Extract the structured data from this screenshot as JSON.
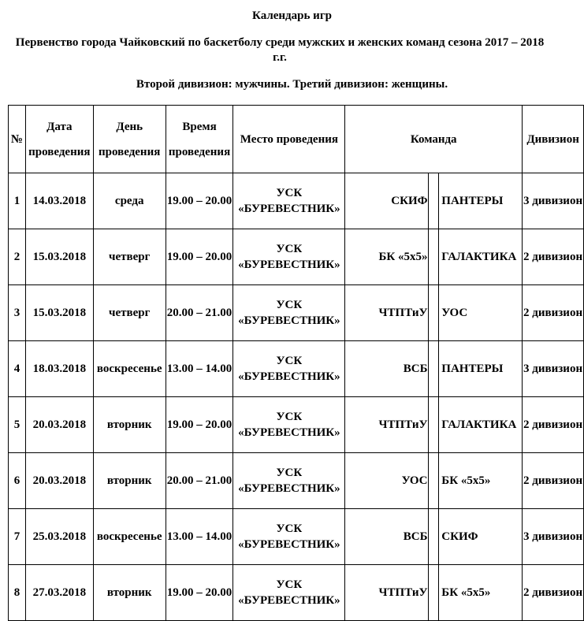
{
  "title": "Календарь игр",
  "subtitle": "Первенство города Чайковский по баскетболу среди мужских и женских команд сезона 2017 – 2018 г.г.",
  "divisions": "Второй дивизион: мужчины. Третий дивизион: женщины.",
  "headers": {
    "num": "№",
    "date": "Дата проведения",
    "day": "День проведения",
    "time": "Время проведения",
    "place": "Место проведения",
    "team": "Команда",
    "division": "Дивизион"
  },
  "rows": [
    {
      "num": "1",
      "date": "14.03.2018",
      "day": "среда",
      "time": "19.00 – 20.00",
      "place": "УСК «БУРЕВЕСТНИК»",
      "team1": "СКИФ",
      "team2": "ПАНТЕРЫ",
      "division": "3 дивизион"
    },
    {
      "num": "2",
      "date": "15.03.2018",
      "day": "четверг",
      "time": "19.00 – 20.00",
      "place": "УСК «БУРЕВЕСТНИК»",
      "team1": "БК «5х5»",
      "team2": "ГАЛАКТИКА",
      "division": "2 дивизион"
    },
    {
      "num": "3",
      "date": "15.03.2018",
      "day": "четверг",
      "time": "20.00 – 21.00",
      "place": "УСК «БУРЕВЕСТНИК»",
      "team1": "ЧТПТиУ",
      "team2": "УОС",
      "division": "2 дивизион"
    },
    {
      "num": "4",
      "date": "18.03.2018",
      "day": "воскресенье",
      "time": "13.00 – 14.00",
      "place": "УСК «БУРЕВЕСТНИК»",
      "team1": "ВСБ",
      "team2": "ПАНТЕРЫ",
      "division": "3 дивизион"
    },
    {
      "num": "5",
      "date": "20.03.2018",
      "day": "вторник",
      "time": "19.00 – 20.00",
      "place": "УСК «БУРЕВЕСТНИК»",
      "team1": "ЧТПТиУ",
      "team2": "ГАЛАКТИКА",
      "division": "2 дивизион"
    },
    {
      "num": "6",
      "date": "20.03.2018",
      "day": "вторник",
      "time": "20.00 – 21.00",
      "place": "УСК «БУРЕВЕСТНИК»",
      "team1": "УОС",
      "team2": "БК «5х5»",
      "division": "2 дивизион"
    },
    {
      "num": "7",
      "date": "25.03.2018",
      "day": "воскресенье",
      "time": "13.00 – 14.00",
      "place": "УСК «БУРЕВЕСТНИК»",
      "team1": "ВСБ",
      "team2": "СКИФ",
      "division": "3 дивизион"
    },
    {
      "num": "8",
      "date": "27.03.2018",
      "day": "вторник",
      "time": "19.00 – 20.00",
      "place": "УСК «БУРЕВЕСТНИК»",
      "team1": "ЧТПТиУ",
      "team2": "БК «5х5»",
      "division": "2 дивизион"
    }
  ]
}
